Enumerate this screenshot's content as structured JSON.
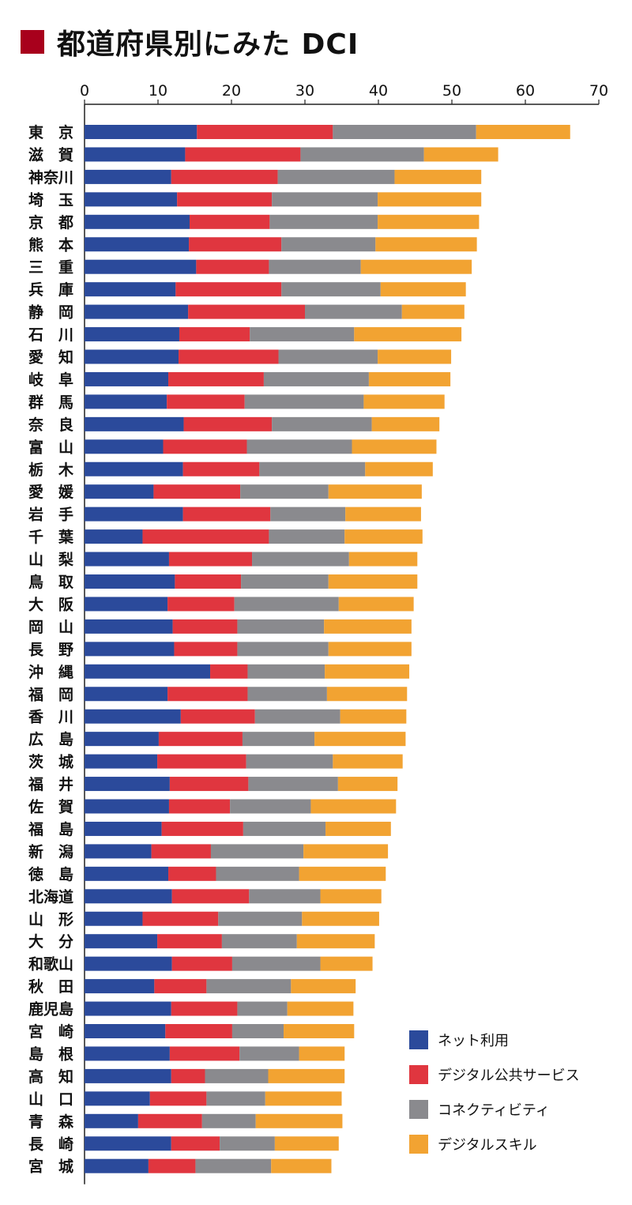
{
  "title": "都道府県別にみた DCI",
  "colors": {
    "title_mark": "#a8001c",
    "axis": "#222222",
    "text": "#111111"
  },
  "chart_data": {
    "type": "bar",
    "orientation": "horizontal",
    "stacked": true,
    "title": "都道府県別にみた DCI",
    "xlim": [
      0,
      70
    ],
    "xticks": [
      0,
      10,
      20,
      30,
      40,
      50,
      60,
      70
    ],
    "grid": false,
    "legend_position": "bottom-right",
    "categories": [
      "東　京",
      "滋　賀",
      "神奈川",
      "埼　玉",
      "京　都",
      "熊　本",
      "三　重",
      "兵　庫",
      "静　岡",
      "石　川",
      "愛　知",
      "岐　阜",
      "群　馬",
      "奈　良",
      "富　山",
      "栃　木",
      "愛　媛",
      "岩　手",
      "千　葉",
      "山　梨",
      "鳥　取",
      "大　阪",
      "岡　山",
      "長　野",
      "沖　縄",
      "福　岡",
      "香　川",
      "広　島",
      "茨　城",
      "福　井",
      "佐　賀",
      "福　島",
      "新　潟",
      "徳　島",
      "北海道",
      "山　形",
      "大　分",
      "和歌山",
      "秋　田",
      "鹿児島",
      "宮　崎",
      "島　根",
      "高　知",
      "山　口",
      "青　森",
      "長　崎",
      "宮　城"
    ],
    "series": [
      {
        "name": "ネット利用",
        "color": "#2b4a9b",
        "values": [
          15.3,
          13.7,
          11.8,
          12.6,
          14.3,
          14.2,
          15.2,
          12.4,
          14.1,
          12.9,
          12.8,
          11.4,
          11.2,
          13.5,
          10.7,
          13.4,
          9.4,
          13.4,
          7.9,
          11.5,
          12.3,
          11.3,
          12.0,
          12.2,
          17.1,
          11.3,
          13.1,
          10.1,
          9.9,
          11.6,
          11.5,
          10.5,
          9.1,
          11.4,
          11.9,
          7.9,
          9.9,
          11.9,
          9.5,
          11.8,
          11.0,
          11.6,
          11.8,
          8.9,
          7.3,
          11.8,
          8.7
        ]
      },
      {
        "name": "デジタル公共サービス",
        "color": "#e0363f",
        "values": [
          18.5,
          15.7,
          14.5,
          12.9,
          10.9,
          12.6,
          9.9,
          14.4,
          15.9,
          9.6,
          13.6,
          13.0,
          10.6,
          12.0,
          11.4,
          10.4,
          11.8,
          11.9,
          17.2,
          11.3,
          9.0,
          9.1,
          8.8,
          8.6,
          5.1,
          10.9,
          10.1,
          11.4,
          12.1,
          10.7,
          8.3,
          11.1,
          8.1,
          6.5,
          10.5,
          10.3,
          8.8,
          8.2,
          7.1,
          9.0,
          9.1,
          9.5,
          4.6,
          7.7,
          8.7,
          6.6,
          6.4
        ]
      },
      {
        "name": "コネクティビティ",
        "color": "#8a8a8e",
        "values": [
          19.5,
          16.8,
          15.9,
          14.4,
          14.7,
          12.8,
          12.5,
          13.5,
          13.2,
          14.2,
          13.5,
          14.3,
          16.2,
          13.6,
          14.3,
          14.4,
          12.0,
          10.2,
          10.3,
          13.2,
          11.9,
          14.2,
          11.8,
          12.4,
          10.5,
          10.8,
          11.6,
          9.8,
          11.8,
          12.2,
          11.0,
          11.2,
          12.6,
          11.3,
          9.7,
          11.4,
          10.2,
          12.0,
          11.5,
          6.8,
          7.0,
          8.1,
          8.6,
          8.0,
          7.3,
          7.5,
          10.3
        ]
      },
      {
        "name": "デジタルスキル",
        "color": "#f2a332",
        "values": [
          12.8,
          10.1,
          11.8,
          14.1,
          13.8,
          13.8,
          15.1,
          11.6,
          8.5,
          14.6,
          10.0,
          11.1,
          11.0,
          9.2,
          11.5,
          9.2,
          12.7,
          10.3,
          10.6,
          9.3,
          12.1,
          10.2,
          11.9,
          11.3,
          11.5,
          10.9,
          9.0,
          12.4,
          9.5,
          8.1,
          11.6,
          8.9,
          11.5,
          11.8,
          8.3,
          10.5,
          10.6,
          7.1,
          8.8,
          9.0,
          9.6,
          6.2,
          10.4,
          10.4,
          11.8,
          8.7,
          8.2
        ]
      }
    ]
  }
}
